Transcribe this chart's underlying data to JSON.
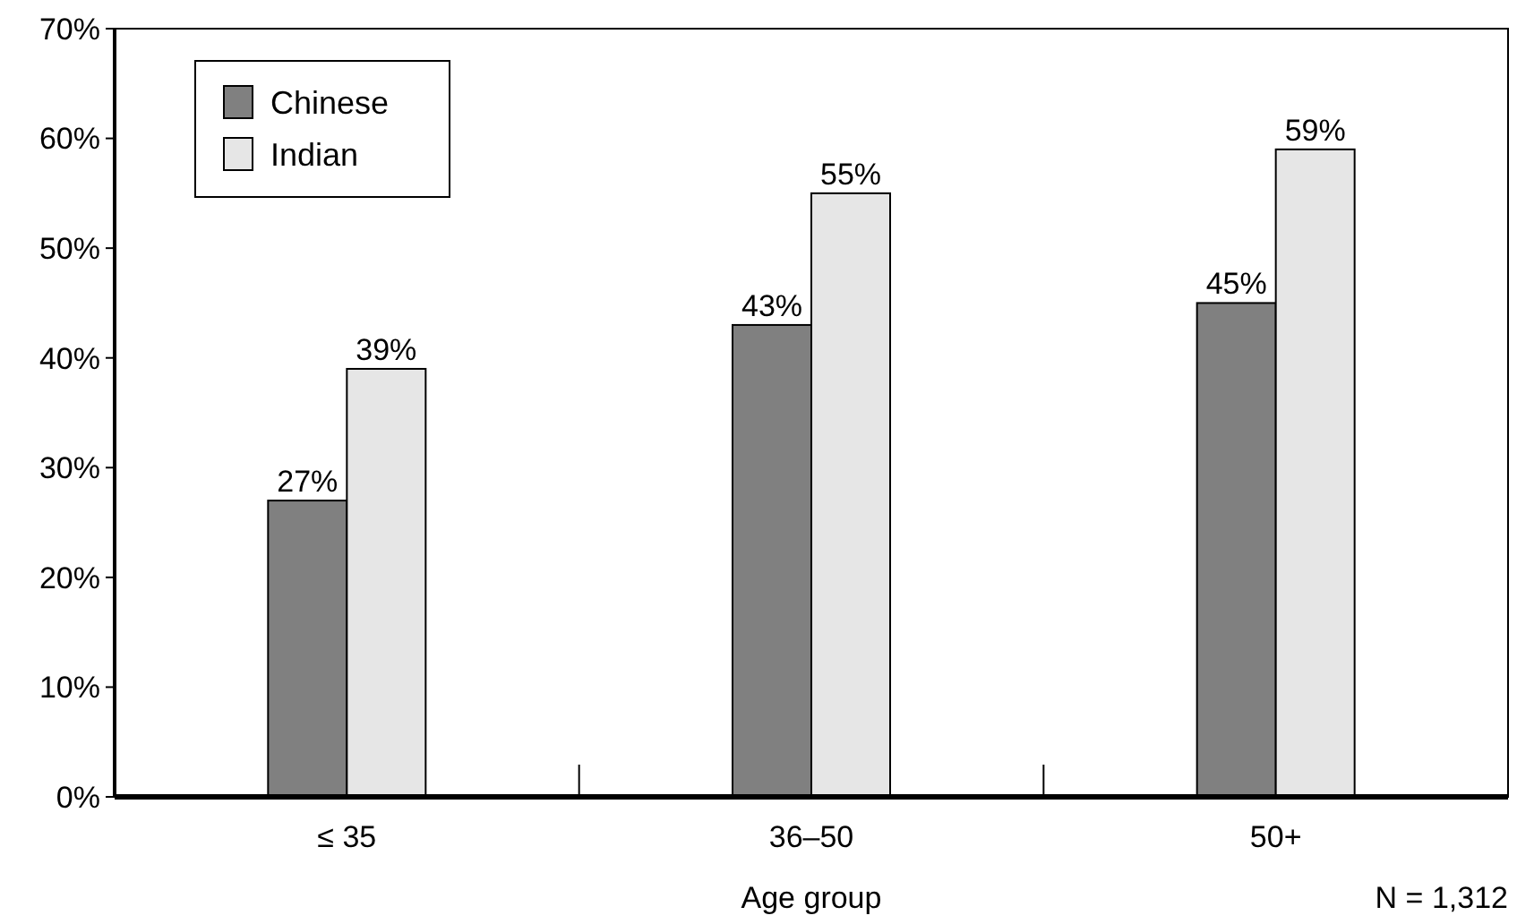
{
  "chart_data": {
    "type": "bar",
    "xlabel": "Age group",
    "categories": [
      "≤ 35",
      "36–50",
      "50+"
    ],
    "series": [
      {
        "name": "Chinese",
        "color": "#808080",
        "values": [
          27,
          43,
          45
        ]
      },
      {
        "name": "Indian",
        "color": "#e6e6e6",
        "values": [
          39,
          55,
          59
        ]
      }
    ],
    "value_labels": [
      [
        "27%",
        "43%",
        "45%"
      ],
      [
        "39%",
        "55%",
        "59%"
      ]
    ],
    "ylim": [
      0,
      70
    ],
    "yticks": [
      {
        "value": 0,
        "label": "0%"
      },
      {
        "value": 10,
        "label": "10%"
      },
      {
        "value": 20,
        "label": "20%"
      },
      {
        "value": 30,
        "label": "30%"
      },
      {
        "value": 40,
        "label": "40%"
      },
      {
        "value": 50,
        "label": "50%"
      },
      {
        "value": 60,
        "label": "60%"
      },
      {
        "value": 70,
        "label": "70%"
      }
    ],
    "grid": false,
    "legend": "top left",
    "annotations": [
      "N = 1,312"
    ]
  }
}
